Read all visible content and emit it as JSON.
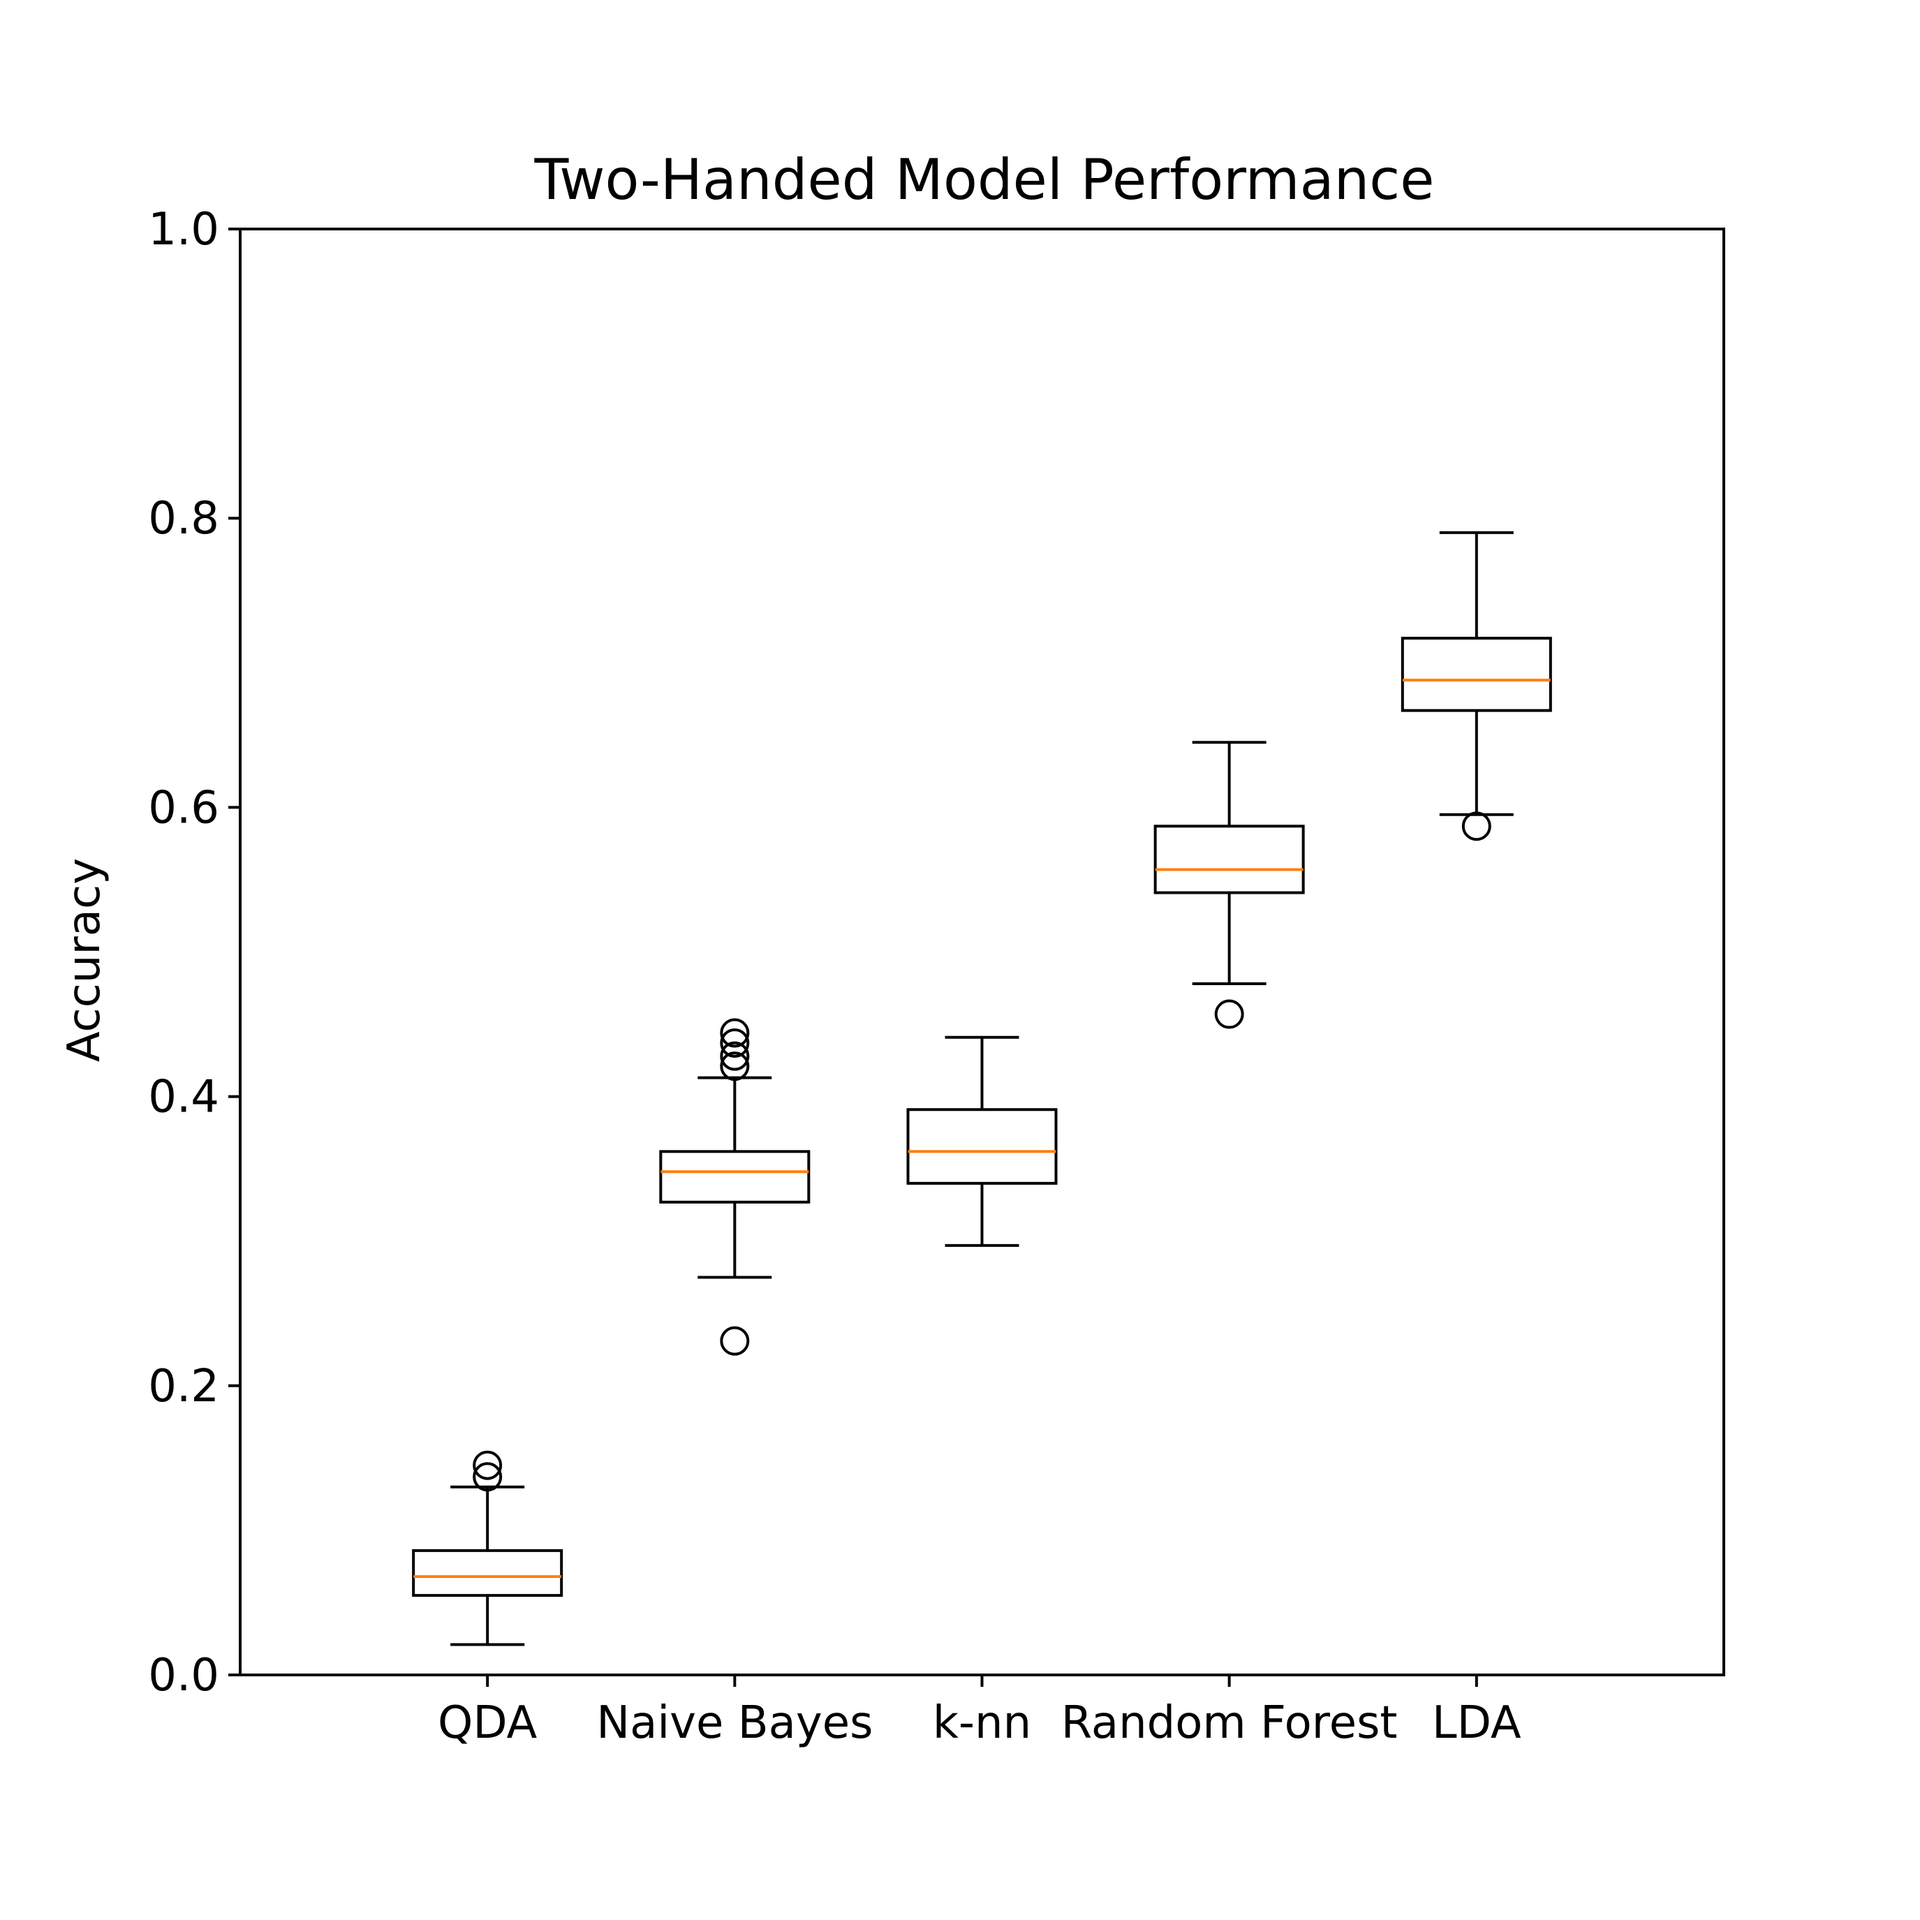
{
  "chart_data": {
    "type": "box",
    "title": "Two-Handed Model Performance",
    "xlabel": "",
    "ylabel": "Accuracy",
    "ylim": [
      0.0,
      1.0
    ],
    "yticks": [
      "0.0",
      "0.2",
      "0.4",
      "0.6",
      "0.8",
      "1.0"
    ],
    "grid": false,
    "categories": [
      "QDA",
      "Naive Bayes",
      "k-nn",
      "Random Forest",
      "LDA"
    ],
    "boxes": [
      {
        "label": "QDA",
        "whisker_low": 0.021,
        "q1": 0.055,
        "median": 0.068,
        "q3": 0.086,
        "whisker_high": 0.13,
        "outliers": [
          0.137,
          0.145
        ]
      },
      {
        "label": "Naive Bayes",
        "whisker_low": 0.275,
        "q1": 0.327,
        "median": 0.348,
        "q3": 0.362,
        "whisker_high": 0.413,
        "outliers": [
          0.231,
          0.421,
          0.428,
          0.437,
          0.444
        ]
      },
      {
        "label": "k-nn",
        "whisker_low": 0.297,
        "q1": 0.34,
        "median": 0.362,
        "q3": 0.391,
        "whisker_high": 0.441,
        "outliers": []
      },
      {
        "label": "Random Forest",
        "whisker_low": 0.478,
        "q1": 0.541,
        "median": 0.557,
        "q3": 0.587,
        "whisker_high": 0.645,
        "outliers": [
          0.457
        ]
      },
      {
        "label": "LDA",
        "whisker_low": 0.595,
        "q1": 0.667,
        "median": 0.688,
        "q3": 0.717,
        "whisker_high": 0.79,
        "outliers": [
          0.587
        ]
      }
    ],
    "colors": {
      "box": "#000000",
      "median": "#ff7f0e",
      "outlier": "#000000"
    }
  }
}
